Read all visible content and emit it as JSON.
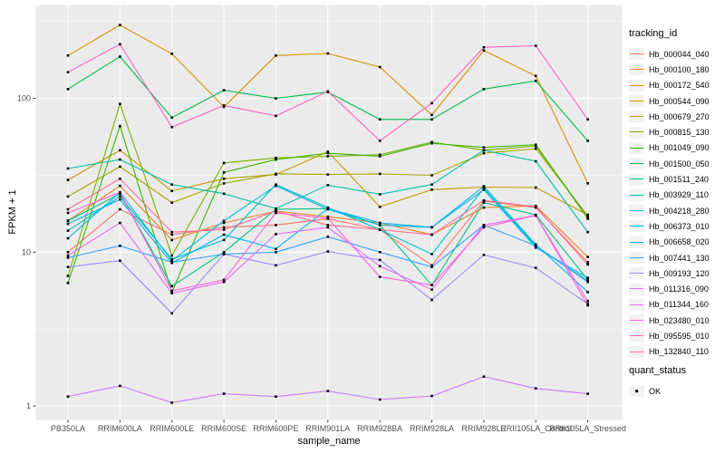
{
  "figure": {
    "y_axis_title": "FPKM + 1",
    "x_axis_title": "sample_name",
    "legend_tracking_title": "tracking_id",
    "legend_quant_title": "quant_status",
    "legend_quant_item": "OK"
  },
  "style_colors": {
    "panel_bg": "#EBEBEB",
    "grid": "#FFFFFF",
    "axis_text": "#4D4D4D",
    "tick_mark": "#333333",
    "legend_key_bg": "#F2F2F2",
    "point": "#000000"
  },
  "chart_data": {
    "type": "line",
    "title": "",
    "xlabel": "sample_name",
    "ylabel": "FPKM + 1",
    "y_scale": "log10",
    "ylim": [
      1,
      400
    ],
    "y_major_ticks": [
      1,
      10,
      100
    ],
    "y_minor_ticks": [
      3.162,
      31.62,
      316.2
    ],
    "grid": true,
    "legend_position": "right",
    "point_shape": "square",
    "quant_status_value": "OK",
    "x_categories": [
      "PB350LA",
      "RRIM600LA",
      "RRIM600LE",
      "RRIM600SE",
      "RRIM600PE",
      "RRIM901LA",
      "RRIM928BA",
      "RRIM928LA",
      "RRIM928LE",
      "RRII105LA_Control",
      "RRII105LA_Stressed"
    ],
    "series": [
      {
        "name": "Hb_000044_040",
        "color": "#F8766D",
        "values": [
          10,
          19,
          13,
          14.5,
          15,
          16.5,
          14,
          8.2,
          21.5,
          19.5,
          8.6
        ]
      },
      {
        "name": "Hb_000100_180",
        "color": "#E88526",
        "values": [
          16,
          27,
          12,
          15.5,
          18.5,
          17,
          15.5,
          13,
          19.5,
          20,
          9.3
        ]
      },
      {
        "name": "Hb_000172_540",
        "color": "#D89000",
        "values": [
          190,
          300,
          195,
          88,
          190,
          196,
          160,
          78,
          205,
          140,
          28
        ]
      },
      {
        "name": "Hb_000544_090",
        "color": "#C09B00",
        "values": [
          29.5,
          46,
          25,
          30,
          32,
          45,
          19.7,
          25.5,
          26.5,
          26.3,
          17.5
        ]
      },
      {
        "name": "Hb_000679_270",
        "color": "#A3A500",
        "values": [
          23,
          36,
          21,
          28,
          32.3,
          32,
          32.3,
          31.6,
          44,
          47,
          17.2
        ]
      },
      {
        "name": "Hb_000815_130",
        "color": "#7CAE00",
        "values": [
          7,
          92,
          9.5,
          38,
          41,
          42,
          43,
          52,
          46,
          49,
          17
        ]
      },
      {
        "name": "Hb_001049_090",
        "color": "#39B600",
        "values": [
          6.3,
          66,
          5.5,
          33,
          40,
          44,
          42,
          51,
          48,
          50,
          16.5
        ]
      },
      {
        "name": "Hb_001500_050",
        "color": "#00BB4E",
        "values": [
          115,
          187,
          75,
          113,
          100,
          110,
          73,
          73,
          115,
          130,
          53
        ]
      },
      {
        "name": "Hb_001511_240",
        "color": "#00BF7D",
        "values": [
          16,
          24,
          6,
          10,
          19,
          19.2,
          15,
          6.1,
          21,
          17.5,
          6.6
        ]
      },
      {
        "name": "Hb_003929_110",
        "color": "#00C1A3",
        "values": [
          35,
          40,
          27.5,
          24,
          19.2,
          27.3,
          23.8,
          27.5,
          46,
          39,
          13.5
        ]
      },
      {
        "name": "Hb_004218_280",
        "color": "#00BFC4",
        "values": [
          13.8,
          23,
          9,
          12,
          27.5,
          19.5,
          14,
          9.7,
          26,
          11,
          6.5
        ]
      },
      {
        "name": "Hb_006373_010",
        "color": "#00BAE0",
        "values": [
          12.3,
          24.5,
          8.8,
          16,
          27,
          19,
          15,
          14.5,
          26.8,
          11.2,
          5.5
        ]
      },
      {
        "name": "Hb_006658_020",
        "color": "#00B0F6",
        "values": [
          15.3,
          22,
          8.5,
          13,
          10.5,
          19.2,
          15.5,
          14.5,
          25.5,
          10.7,
          6.8
        ]
      },
      {
        "name": "Hb_007441_130",
        "color": "#35A2FF",
        "values": [
          9.2,
          11,
          8.6,
          9.7,
          10,
          12.6,
          10,
          8,
          15,
          11,
          6.4
        ]
      },
      {
        "name": "Hb_009193_120",
        "color": "#9590FF",
        "values": [
          8,
          8.8,
          4,
          9.7,
          8.2,
          10.1,
          8.9,
          4.9,
          9.6,
          7.9,
          4.6
        ]
      },
      {
        "name": "Hb_011316_090",
        "color": "#C77CFF",
        "values": [
          1.15,
          1.35,
          1.05,
          1.2,
          1.15,
          1.25,
          1.1,
          1.16,
          1.55,
          1.3,
          1.2
        ]
      },
      {
        "name": "Hb_011344_160",
        "color": "#E76BF3",
        "values": [
          9.5,
          15.5,
          5.4,
          6.4,
          13.1,
          14.5,
          8.1,
          5.7,
          15,
          17.3,
          4.8
        ]
      },
      {
        "name": "Hb_023480_010",
        "color": "#FA62DB",
        "values": [
          18,
          24.5,
          5.6,
          6.6,
          18,
          16.6,
          6.9,
          6.1,
          14.5,
          17.3,
          4.5
        ]
      },
      {
        "name": "Hb_095595_010",
        "color": "#FF62BC",
        "values": [
          148,
          225,
          65,
          90,
          77,
          111,
          53,
          93,
          215,
          220,
          73
        ]
      },
      {
        "name": "Hb_132840_110",
        "color": "#FF6A98",
        "values": [
          19,
          30,
          13.5,
          14,
          18.5,
          15,
          14,
          13,
          21.7,
          19.7,
          8.3
        ]
      }
    ]
  }
}
